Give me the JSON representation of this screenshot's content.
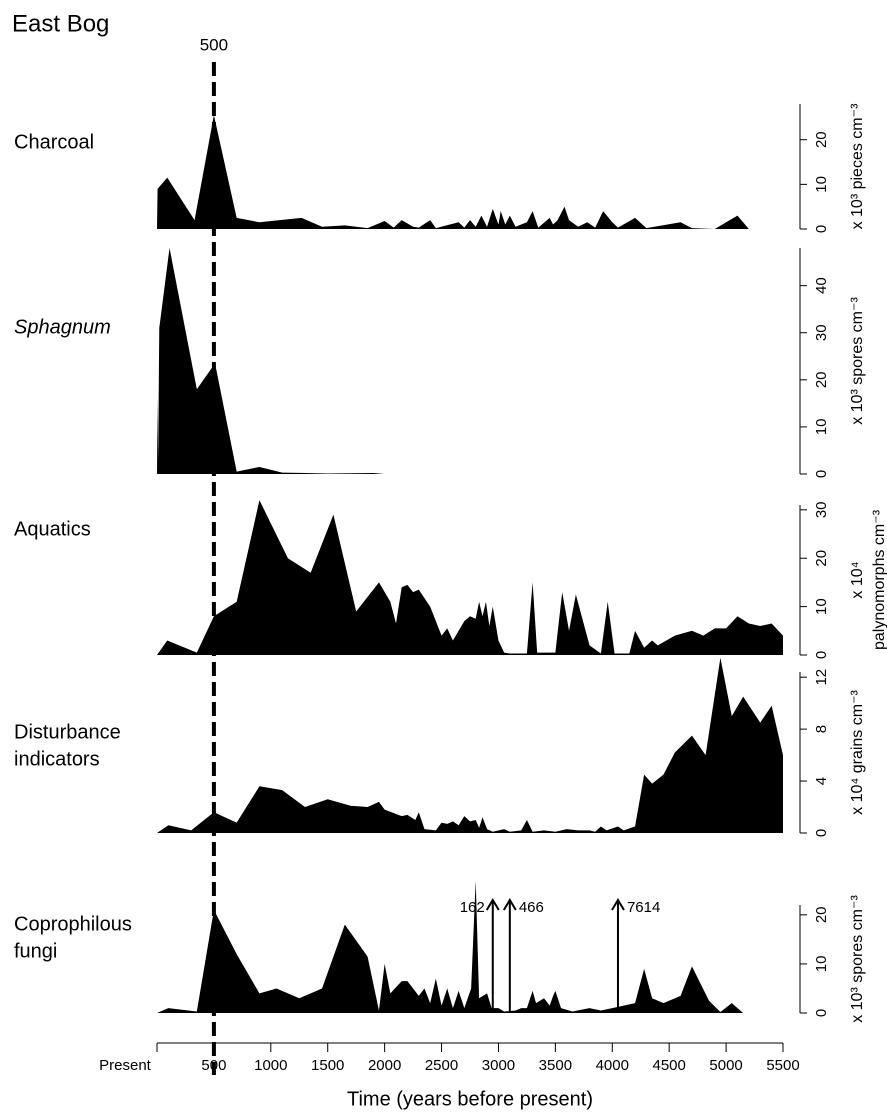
{
  "title": "East Bog",
  "reference_line": 500,
  "chart_data": [
    {
      "type": "area",
      "title": [
        "Charcoal"
      ],
      "ylabel": [
        "x 10³ pieces cm⁻³"
      ],
      "color": "#000000",
      "xlim": [
        0,
        5500
      ],
      "ylim": [
        0,
        28
      ],
      "yticks": [
        0,
        10,
        20
      ],
      "x": [
        0,
        5,
        90,
        330,
        500,
        700,
        900,
        1270,
        1450,
        1650,
        1850,
        2000,
        2080,
        2150,
        2250,
        2300,
        2400,
        2450,
        2650,
        2700,
        2750,
        2800,
        2850,
        2900,
        2950,
        3000,
        3020,
        3060,
        3100,
        3150,
        3250,
        3300,
        3350,
        3450,
        3480,
        3520,
        3580,
        3620,
        3700,
        3780,
        3850,
        3920,
        4000,
        4050,
        4200,
        4300,
        4600,
        4700,
        4900,
        5100,
        5200,
        5500
      ],
      "values": [
        0,
        9,
        11.5,
        2,
        25.5,
        2.5,
        1.5,
        2.5,
        0.5,
        0.8,
        0.2,
        1.8,
        0.3,
        2,
        0.5,
        0.3,
        2,
        0.2,
        1.5,
        0.3,
        2,
        0.5,
        3,
        0.5,
        4.5,
        1,
        4,
        1,
        3,
        0.5,
        1.5,
        4,
        0.3,
        2.5,
        1,
        2,
        5,
        2,
        0.5,
        1.5,
        0.3,
        4,
        1.5,
        0.3,
        2.5,
        0.2,
        1.5,
        0.2,
        0,
        3,
        0,
        0
      ]
    },
    {
      "type": "area",
      "title": [
        "Sphagnum"
      ],
      "title_style": "italic",
      "ylabel": [
        "x 10³ spores cm⁻³"
      ],
      "color": "#000000",
      "xlim": [
        0,
        5500
      ],
      "ylim": [
        0,
        48
      ],
      "yticks": [
        0,
        10,
        20,
        30,
        40
      ],
      "x": [
        0,
        5,
        10,
        20,
        110,
        350,
        510,
        700,
        900,
        1100,
        1300,
        1500,
        1900,
        2000,
        5500
      ],
      "values": [
        0,
        16,
        3,
        31,
        48,
        18,
        23.5,
        0.5,
        1.5,
        0.3,
        0.2,
        0.1,
        0.2,
        0,
        0
      ]
    },
    {
      "type": "area",
      "title": [
        "Aquatics"
      ],
      "ylabel": [
        "x 10⁴",
        "palynomorphs cm⁻³"
      ],
      "color": "#000000",
      "xlim": [
        0,
        5500
      ],
      "ylim": [
        0,
        31
      ],
      "yticks": [
        0,
        10,
        20,
        30
      ],
      "x": [
        0,
        90,
        350,
        500,
        700,
        900,
        1150,
        1350,
        1550,
        1750,
        1950,
        2050,
        2100,
        2150,
        2200,
        2250,
        2300,
        2400,
        2500,
        2550,
        2600,
        2700,
        2750,
        2800,
        2830,
        2860,
        2890,
        2920,
        2950,
        3000,
        3050,
        3100,
        3250,
        3300,
        3340,
        3500,
        3560,
        3620,
        3680,
        3800,
        3900,
        3960,
        4020,
        4150,
        4200,
        4280,
        4350,
        4400,
        4550,
        4700,
        4800,
        4900,
        5000,
        5100,
        5200,
        5300,
        5400,
        5500
      ],
      "values": [
        0,
        3,
        0.5,
        8,
        11,
        32,
        20,
        17,
        29,
        9,
        15,
        11,
        6.5,
        14,
        14.5,
        13,
        13.5,
        10,
        4,
        5.5,
        3,
        7,
        8,
        7.5,
        11,
        8,
        11,
        6,
        10,
        3,
        0.5,
        0.3,
        0.3,
        15,
        0.5,
        0.5,
        13,
        5,
        12.5,
        2,
        0.3,
        11,
        0.3,
        0.3,
        5,
        1.5,
        3,
        2,
        4,
        5,
        4,
        5.5,
        5.5,
        8,
        6.5,
        6,
        6.5,
        4
      ]
    },
    {
      "type": "area",
      "title": [
        "Disturbance",
        "indicators"
      ],
      "ylabel": [
        "x 10⁴ grains cm⁻³"
      ],
      "color": "#000000",
      "xlim": [
        0,
        5500
      ],
      "ylim": [
        0,
        12.4
      ],
      "yticks": [
        0,
        4,
        8,
        12
      ],
      "x": [
        0,
        100,
        300,
        500,
        700,
        900,
        1100,
        1300,
        1500,
        1700,
        1850,
        1950,
        2000,
        2150,
        2200,
        2270,
        2300,
        2350,
        2450,
        2500,
        2550,
        2600,
        2650,
        2700,
        2750,
        2800,
        2830,
        2860,
        2900,
        2950,
        3050,
        3100,
        3200,
        3250,
        3300,
        3400,
        3500,
        3600,
        3700,
        3800,
        3850,
        3900,
        3950,
        4050,
        4100,
        4200,
        4280,
        4350,
        4450,
        4550,
        4700,
        4820,
        4950,
        5050,
        5150,
        5300,
        5400,
        5500
      ],
      "values": [
        0,
        0.6,
        0.2,
        1.6,
        0.8,
        3.6,
        3.3,
        2,
        2.6,
        2.1,
        2,
        2.4,
        1.8,
        1.3,
        1.4,
        1,
        1.6,
        0.3,
        0.2,
        0.8,
        0.7,
        0.9,
        0.6,
        1.3,
        0.9,
        1,
        0.4,
        1.2,
        0.3,
        0.1,
        0.3,
        0.1,
        0.2,
        1,
        0.1,
        0.2,
        0.1,
        0.3,
        0.2,
        0.2,
        0.1,
        0.5,
        0.2,
        0.5,
        0.2,
        0.5,
        4.5,
        3.8,
        4.5,
        6.2,
        7.5,
        6,
        13.5,
        9,
        10.5,
        8.5,
        9.8,
        6
      ]
    },
    {
      "type": "area",
      "title": [
        "Coprophilous",
        "fungi"
      ],
      "ylabel": [
        "x 10³ spores cm⁻³"
      ],
      "color": "#000000",
      "xlim": [
        0,
        5500
      ],
      "ylim": [
        0,
        22
      ],
      "yticks": [
        0,
        10,
        20
      ],
      "xlabel": "Time (years before present)",
      "xticks": [
        {
          "value": 0,
          "label": "Present"
        },
        500,
        1000,
        1500,
        2000,
        2500,
        3000,
        3500,
        4000,
        4500,
        5000,
        5500
      ],
      "x": [
        0,
        100,
        350,
        500,
        700,
        900,
        1050,
        1250,
        1450,
        1650,
        1850,
        1950,
        2000,
        2050,
        2150,
        2200,
        2300,
        2350,
        2400,
        2450,
        2500,
        2550,
        2600,
        2650,
        2700,
        2760,
        2800,
        2830,
        2900,
        2940,
        3000,
        3050,
        3150,
        3200,
        3250,
        3300,
        3330,
        3400,
        3450,
        3480,
        3500,
        3550,
        3650,
        3800,
        3900,
        4000,
        4100,
        4200,
        4280,
        4350,
        4450,
        4600,
        4700,
        4850,
        4950,
        5050,
        5150,
        5500
      ],
      "values": [
        0,
        1,
        0.3,
        21,
        12,
        4,
        5,
        3,
        5,
        18,
        11.5,
        0.5,
        10,
        4,
        6.5,
        6.5,
        3.5,
        5,
        2,
        7,
        1.5,
        5,
        1,
        4.5,
        1,
        5,
        27,
        3,
        4,
        1,
        1,
        0.3,
        0.5,
        1,
        1,
        4.5,
        2,
        3,
        1.5,
        3.5,
        4.5,
        1,
        0.3,
        1,
        0.5,
        1,
        1.5,
        2,
        9,
        3,
        2,
        3.5,
        9.5,
        2.5,
        0.2,
        2,
        0,
        0
      ],
      "annotations": [
        {
          "x": 2950,
          "value": 162
        },
        {
          "x": 3100,
          "value": 466
        },
        {
          "x": 4050,
          "value": 7614
        }
      ]
    }
  ]
}
